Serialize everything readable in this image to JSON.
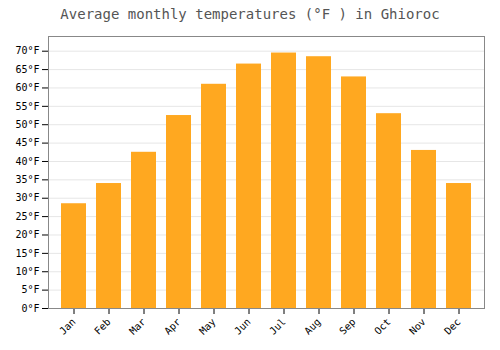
{
  "chart_data": {
    "type": "bar",
    "title": "Average monthly temperatures (°F ) in Ghioroc",
    "categories": [
      "Jan",
      "Feb",
      "Mar",
      "Apr",
      "May",
      "Jun",
      "Jul",
      "Aug",
      "Sep",
      "Oct",
      "Nov",
      "Dec"
    ],
    "values": [
      28.5,
      34.0,
      42.5,
      52.5,
      61.0,
      66.5,
      69.5,
      68.5,
      63.0,
      53.0,
      43.0,
      34.0
    ],
    "color": "#FFA820",
    "ylim": [
      0,
      74
    ],
    "yticks": [
      {
        "value": 0,
        "label": "0°F"
      },
      {
        "value": 5,
        "label": "5°F"
      },
      {
        "value": 10,
        "label": "10°F"
      },
      {
        "value": 15,
        "label": "15°F"
      },
      {
        "value": 20,
        "label": "20°F"
      },
      {
        "value": 25,
        "label": "25°F"
      },
      {
        "value": 30,
        "label": "30°F"
      },
      {
        "value": 35,
        "label": "35°F"
      },
      {
        "value": 40,
        "label": "40°F"
      },
      {
        "value": 45,
        "label": "45°F"
      },
      {
        "value": 50,
        "label": "50°F"
      },
      {
        "value": 55,
        "label": "55°F"
      },
      {
        "value": 60,
        "label": "60°F"
      },
      {
        "value": 65,
        "label": "65°F"
      },
      {
        "value": 70,
        "label": "70°F"
      }
    ],
    "grid": true
  }
}
